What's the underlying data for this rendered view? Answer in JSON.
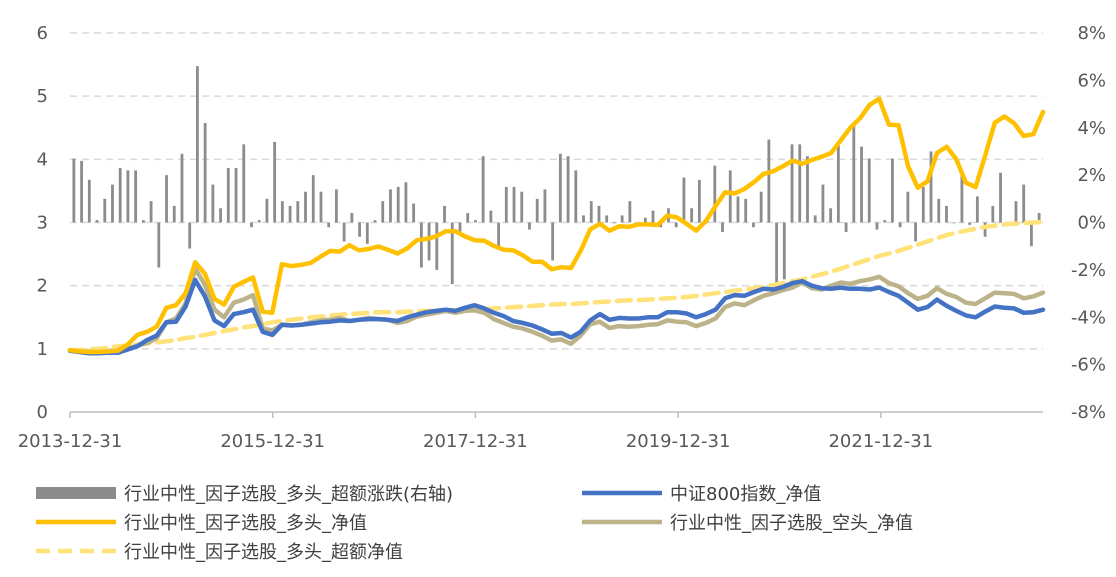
{
  "chart_data": {
    "type": "line",
    "title": "",
    "xlabel": "",
    "ylabel": "",
    "grid": true,
    "legend_position": "bottom",
    "x_tick_labels": [
      "2013-12-31",
      "2015-12-31",
      "2017-12-31",
      "2019-12-31",
      "2021-12-31"
    ],
    "x_range": [
      "2013-12-31",
      "2023-12-31"
    ],
    "y_left": {
      "ylim": [
        0,
        6
      ],
      "ticks": [
        "0",
        "1",
        "2",
        "3",
        "4",
        "5",
        "6"
      ]
    },
    "y_right": {
      "ylim": [
        -8,
        8
      ],
      "ticks": [
        "-8%",
        "-6%",
        "-4%",
        "-2%",
        "0%",
        "2%",
        "4%",
        "6%",
        "8%"
      ],
      "unit": "%"
    },
    "colors": {
      "bars": "#8c8c8c",
      "csi800": "#4472c4",
      "long_nav": "#ffc000",
      "short_nav": "#bcb38a",
      "excess_nav": "#ffe27a",
      "grid": "#d9d9d9",
      "axis": "#bfbfbf",
      "tick_text": "#595959"
    },
    "series": [
      {
        "name": "行业中性_因子选股_多头_超额涨跌(右轴)",
        "type": "bar",
        "axis": "right",
        "values": [
          2.7,
          2.6,
          1.8,
          0.1,
          1.0,
          1.6,
          2.3,
          2.2,
          2.2,
          0.1,
          0.9,
          -1.9,
          2.0,
          0.7,
          2.9,
          -1.1,
          6.6,
          4.2,
          1.6,
          0.6,
          2.3,
          2.3,
          3.3,
          -0.2,
          0.1,
          1.0,
          3.4,
          0.9,
          0.7,
          0.9,
          1.3,
          2.0,
          1.3,
          -0.2,
          1.4,
          -0.8,
          0.4,
          -0.6,
          -0.9,
          0.1,
          0.9,
          1.4,
          1.5,
          1.7,
          0.8,
          -1.9,
          -1.6,
          -2.0,
          0.7,
          -2.6,
          -0.4,
          0.4,
          0.1,
          2.8,
          0.5,
          -1.0,
          1.5,
          1.5,
          1.3,
          -0.3,
          1.0,
          1.4,
          -1.6,
          2.9,
          2.8,
          2.2,
          0.3,
          0.9,
          0.7,
          0.3,
          0.0,
          0.3,
          0.9,
          0.0,
          0.2,
          0.5,
          -0.2,
          0.6,
          -0.2,
          1.9,
          0.6,
          1.8,
          0.1,
          2.4,
          -0.4,
          2.2,
          1.1,
          1.0,
          -0.2,
          1.3,
          3.5,
          -3.0,
          -2.4,
          3.3,
          3.3,
          2.8,
          0.3,
          1.6,
          0.6,
          3.4,
          -0.4,
          4.1,
          3.2,
          2.7,
          -0.3,
          0.1,
          2.7,
          -0.2,
          1.3,
          -0.8,
          1.5,
          3.0,
          1.0,
          0.7,
          0.0,
          2.1,
          -0.1,
          1.1,
          -0.6,
          0.7,
          2.1,
          -0.1,
          0.9,
          1.6,
          -1.0,
          0.4
        ]
      },
      {
        "name": "中证800指数_净值",
        "type": "line",
        "axis": "left",
        "values": [
          0.97,
          0.95,
          0.93,
          0.93,
          0.94,
          0.94,
          0.99,
          1.04,
          1.14,
          1.21,
          1.42,
          1.43,
          1.67,
          2.09,
          1.83,
          1.45,
          1.36,
          1.55,
          1.58,
          1.62,
          1.27,
          1.22,
          1.38,
          1.37,
          1.38,
          1.4,
          1.42,
          1.43,
          1.45,
          1.44,
          1.46,
          1.47,
          1.47,
          1.46,
          1.44,
          1.5,
          1.54,
          1.58,
          1.6,
          1.62,
          1.6,
          1.65,
          1.69,
          1.64,
          1.57,
          1.52,
          1.44,
          1.41,
          1.37,
          1.31,
          1.24,
          1.25,
          1.18,
          1.27,
          1.45,
          1.55,
          1.46,
          1.49,
          1.48,
          1.48,
          1.5,
          1.5,
          1.58,
          1.58,
          1.56,
          1.5,
          1.55,
          1.62,
          1.8,
          1.85,
          1.84,
          1.9,
          1.95,
          1.94,
          1.98,
          2.04,
          2.07,
          2.0,
          1.96,
          1.95,
          1.97,
          1.95,
          1.95,
          1.94,
          1.97,
          1.9,
          1.84,
          1.73,
          1.62,
          1.66,
          1.78,
          1.68,
          1.6,
          1.53,
          1.5,
          1.59,
          1.67,
          1.65,
          1.64,
          1.57,
          1.58,
          1.62
        ]
      },
      {
        "name": "行业中性_因子选股_多头_净值",
        "type": "line",
        "axis": "left",
        "values": [
          0.98,
          0.96,
          0.95,
          0.95,
          0.96,
          0.97,
          1.07,
          1.22,
          1.27,
          1.35,
          1.65,
          1.69,
          1.88,
          2.37,
          2.19,
          1.79,
          1.7,
          1.98,
          2.06,
          2.13,
          1.59,
          1.57,
          2.34,
          2.31,
          2.33,
          2.36,
          2.46,
          2.55,
          2.54,
          2.64,
          2.56,
          2.58,
          2.62,
          2.57,
          2.51,
          2.59,
          2.72,
          2.74,
          2.78,
          2.86,
          2.86,
          2.78,
          2.72,
          2.71,
          2.63,
          2.57,
          2.56,
          2.48,
          2.38,
          2.38,
          2.26,
          2.29,
          2.28,
          2.55,
          2.89,
          2.98,
          2.87,
          2.94,
          2.93,
          2.97,
          2.97,
          2.96,
          3.11,
          3.08,
          2.98,
          2.87,
          3.02,
          3.26,
          3.48,
          3.46,
          3.53,
          3.64,
          3.77,
          3.81,
          3.89,
          3.98,
          3.93,
          3.99,
          4.04,
          4.1,
          4.3,
          4.5,
          4.65,
          4.86,
          4.96,
          4.55,
          4.54,
          3.89,
          3.55,
          3.65,
          4.1,
          4.2,
          4.0,
          3.63,
          3.56,
          4.06,
          4.58,
          4.68,
          4.57,
          4.37,
          4.4,
          4.75
        ]
      },
      {
        "name": "行业中性_因子选股_空头_净值",
        "type": "line",
        "axis": "left",
        "values": [
          0.97,
          0.96,
          0.95,
          0.95,
          0.95,
          0.95,
          1.01,
          1.05,
          1.09,
          1.17,
          1.42,
          1.48,
          1.72,
          2.27,
          2.01,
          1.62,
          1.5,
          1.73,
          1.78,
          1.85,
          1.32,
          1.29,
          1.38,
          1.37,
          1.38,
          1.42,
          1.45,
          1.46,
          1.49,
          1.44,
          1.46,
          1.49,
          1.47,
          1.46,
          1.41,
          1.44,
          1.51,
          1.54,
          1.57,
          1.6,
          1.57,
          1.6,
          1.61,
          1.57,
          1.47,
          1.41,
          1.35,
          1.32,
          1.27,
          1.21,
          1.13,
          1.15,
          1.08,
          1.21,
          1.39,
          1.43,
          1.33,
          1.36,
          1.35,
          1.36,
          1.38,
          1.39,
          1.45,
          1.43,
          1.42,
          1.36,
          1.41,
          1.48,
          1.66,
          1.72,
          1.69,
          1.77,
          1.84,
          1.88,
          1.93,
          1.97,
          2.05,
          1.96,
          1.94,
          2.0,
          2.05,
          2.03,
          2.07,
          2.1,
          2.14,
          2.04,
          1.99,
          1.88,
          1.79,
          1.84,
          1.96,
          1.87,
          1.82,
          1.73,
          1.71,
          1.8,
          1.89,
          1.88,
          1.87,
          1.8,
          1.83,
          1.89
        ]
      },
      {
        "name": "行业中性_因子选股_多头_超额净值",
        "type": "line",
        "axis": "left",
        "style": "dashed",
        "values": [
          0.97,
          0.98,
          0.99,
          1.0,
          1.02,
          1.04,
          1.05,
          1.07,
          1.09,
          1.1,
          1.12,
          1.14,
          1.17,
          1.19,
          1.22,
          1.25,
          1.28,
          1.31,
          1.34,
          1.36,
          1.39,
          1.42,
          1.44,
          1.46,
          1.48,
          1.5,
          1.51,
          1.53,
          1.54,
          1.55,
          1.56,
          1.57,
          1.58,
          1.58,
          1.58,
          1.59,
          1.59,
          1.6,
          1.6,
          1.61,
          1.61,
          1.62,
          1.63,
          1.63,
          1.64,
          1.65,
          1.66,
          1.67,
          1.68,
          1.69,
          1.7,
          1.71,
          1.71,
          1.72,
          1.73,
          1.74,
          1.75,
          1.76,
          1.77,
          1.77,
          1.78,
          1.79,
          1.8,
          1.81,
          1.82,
          1.84,
          1.86,
          1.88,
          1.9,
          1.92,
          1.94,
          1.96,
          1.98,
          2.01,
          2.04,
          2.07,
          2.1,
          2.14,
          2.18,
          2.22,
          2.27,
          2.32,
          2.37,
          2.42,
          2.47,
          2.51,
          2.55,
          2.6,
          2.65,
          2.7,
          2.75,
          2.8,
          2.84,
          2.87,
          2.9,
          2.93,
          2.95,
          2.97,
          2.98,
          2.99,
          3.0,
          3.01
        ]
      }
    ]
  }
}
